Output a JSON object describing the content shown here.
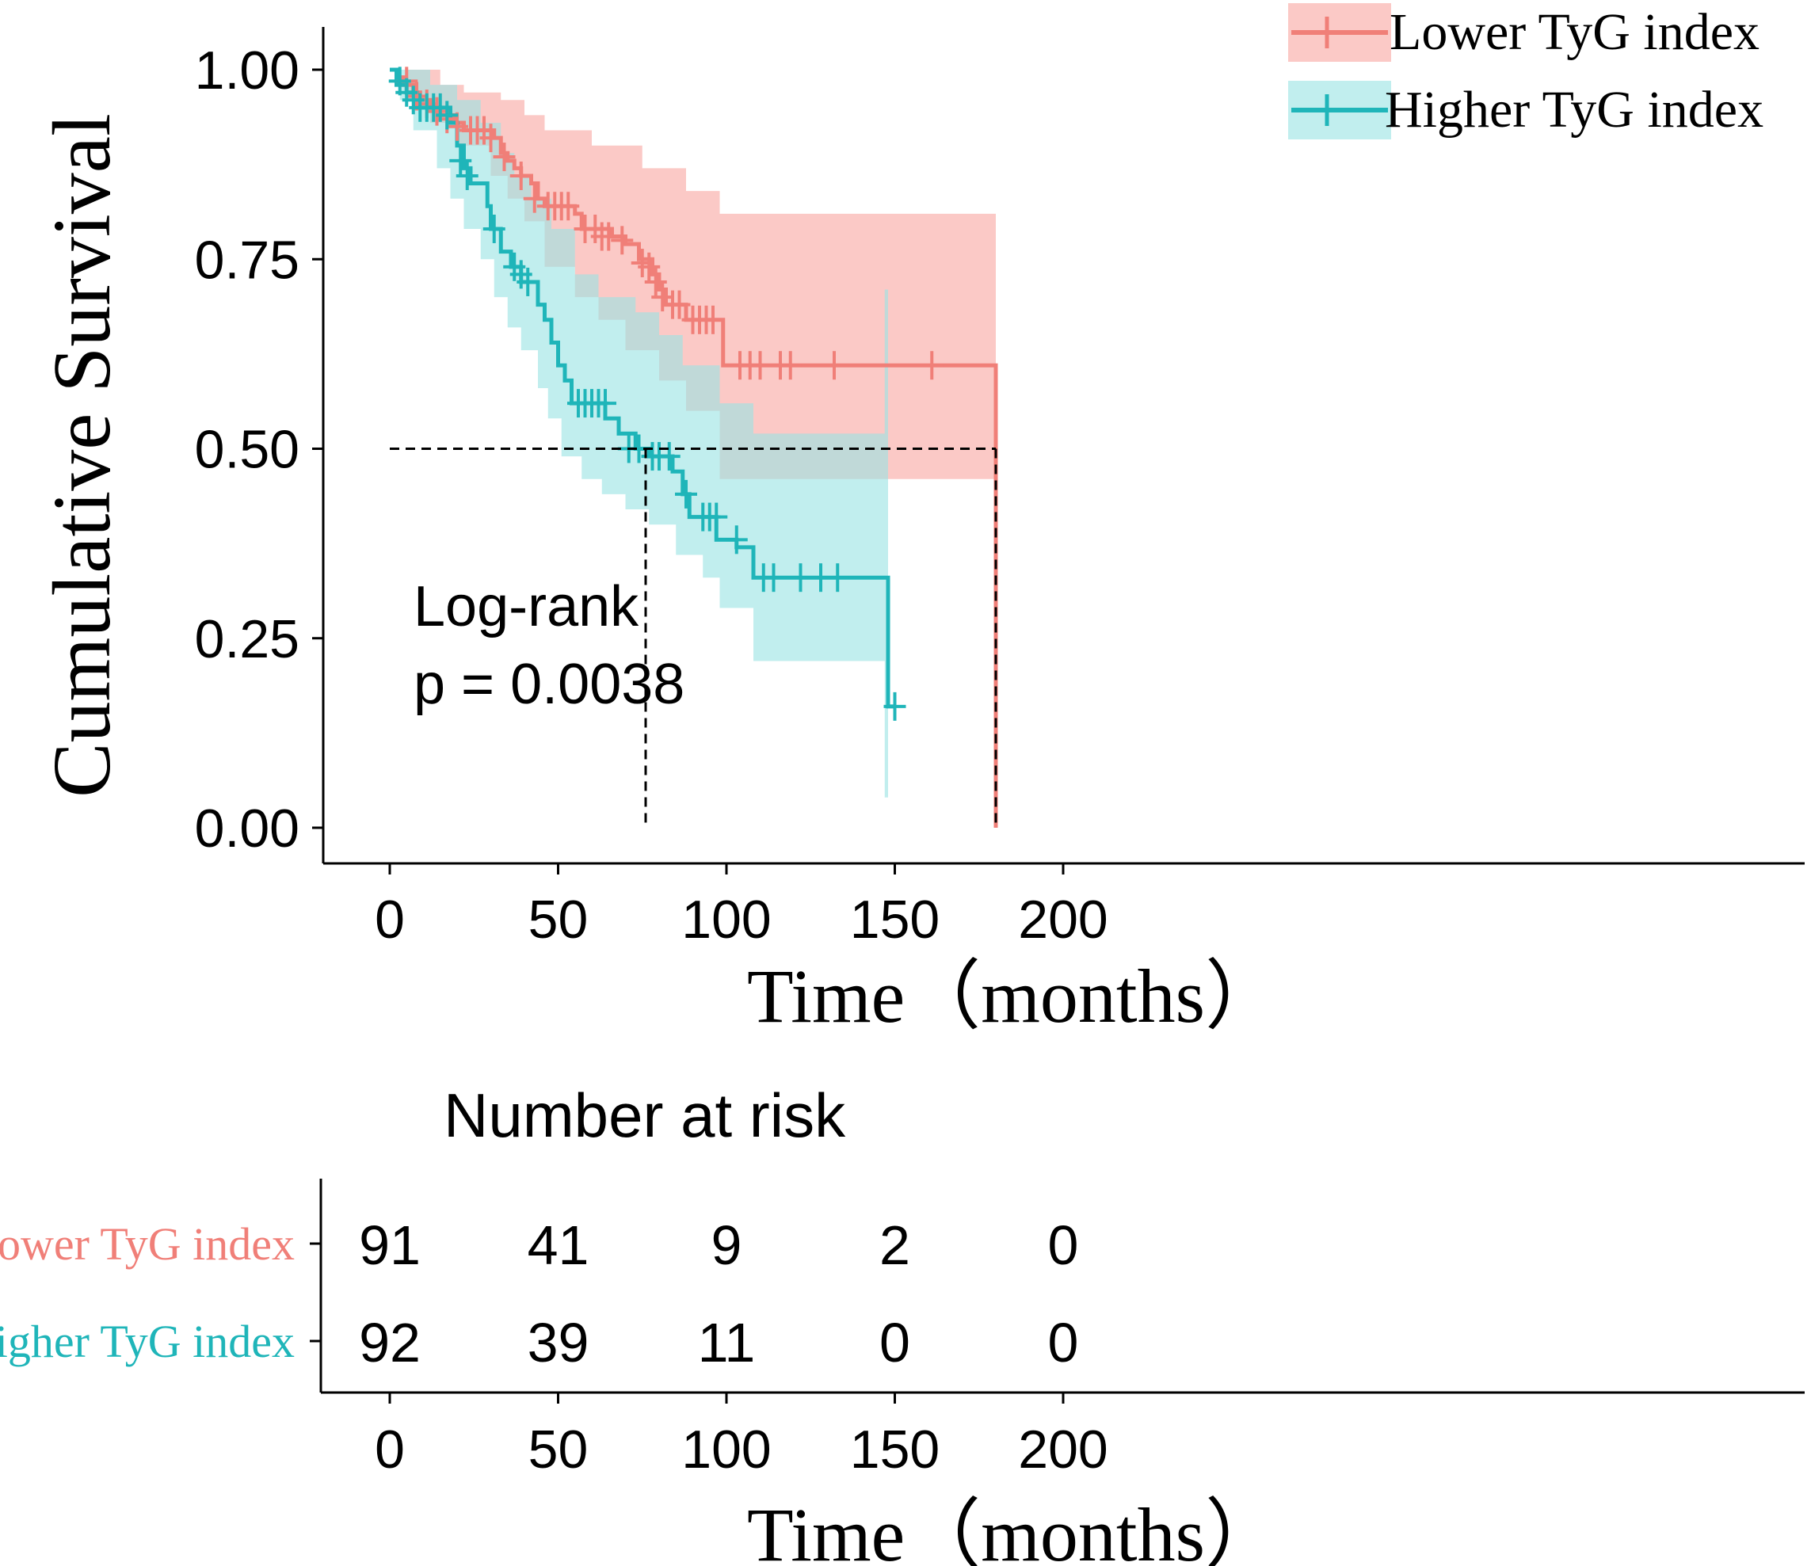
{
  "chart_data": {
    "type": "line",
    "subtype": "kaplan-meier",
    "ylabel": "Cumulative Survival",
    "xlabel": "Time（months）",
    "xlim": [
      0,
      200
    ],
    "ylim": [
      0,
      1
    ],
    "x_ticks": [
      "0",
      "50",
      "100",
      "150",
      "200"
    ],
    "y_ticks": [
      "0.00",
      "0.25",
      "0.50",
      "0.75",
      "1.00"
    ],
    "x_tick_values": [
      0,
      50,
      100,
      150,
      200
    ],
    "y_tick_values": [
      0,
      0.25,
      0.5,
      0.75,
      1.0
    ],
    "annotation": {
      "line1": "Log-rank",
      "line2": "p = 0.0038"
    },
    "median_line_y": 0.5,
    "medians": [
      76,
      180
    ],
    "legend": {
      "position": "top-right"
    },
    "series": [
      {
        "name": "Lower TyG index",
        "color": "#F07F78",
        "band_color": "#F8A8A3",
        "steps": [
          [
            0,
            1.0
          ],
          [
            2,
            0.99
          ],
          [
            4,
            0.98
          ],
          [
            7,
            0.97
          ],
          [
            9,
            0.96
          ],
          [
            12,
            0.95
          ],
          [
            15,
            0.94
          ],
          [
            19,
            0.93
          ],
          [
            22,
            0.92
          ],
          [
            31,
            0.91
          ],
          [
            33,
            0.89
          ],
          [
            35,
            0.88
          ],
          [
            37,
            0.87
          ],
          [
            39,
            0.86
          ],
          [
            42,
            0.85
          ],
          [
            44,
            0.83
          ],
          [
            46,
            0.82
          ],
          [
            55,
            0.81
          ],
          [
            57,
            0.79
          ],
          [
            66,
            0.78
          ],
          [
            70,
            0.77
          ],
          [
            74,
            0.75
          ],
          [
            78,
            0.73
          ],
          [
            80,
            0.71
          ],
          [
            82,
            0.69
          ],
          [
            88,
            0.67
          ],
          [
            99,
            0.61
          ],
          [
            180,
            0.61
          ],
          [
            180,
            0
          ]
        ],
        "upper": [
          [
            0,
            1.0
          ],
          [
            5,
            1.0
          ],
          [
            15,
            0.98
          ],
          [
            22,
            0.97
          ],
          [
            33,
            0.96
          ],
          [
            40,
            0.94
          ],
          [
            46,
            0.92
          ],
          [
            60,
            0.9
          ],
          [
            75,
            0.87
          ],
          [
            88,
            0.84
          ],
          [
            98,
            0.81
          ],
          [
            180,
            0.81
          ]
        ],
        "lower": [
          [
            0,
            1.0
          ],
          [
            5,
            0.96
          ],
          [
            12,
            0.93
          ],
          [
            20,
            0.9
          ],
          [
            30,
            0.86
          ],
          [
            35,
            0.83
          ],
          [
            40,
            0.8
          ],
          [
            46,
            0.74
          ],
          [
            55,
            0.7
          ],
          [
            62,
            0.67
          ],
          [
            70,
            0.63
          ],
          [
            80,
            0.59
          ],
          [
            88,
            0.55
          ],
          [
            98,
            0.46
          ],
          [
            180,
            0.46
          ]
        ],
        "censors": [
          [
            5,
            0.985
          ],
          [
            8,
            0.965
          ],
          [
            11,
            0.955
          ],
          [
            14,
            0.945
          ],
          [
            17,
            0.935
          ],
          [
            20,
            0.925
          ],
          [
            24,
            0.92
          ],
          [
            26,
            0.92
          ],
          [
            28,
            0.92
          ],
          [
            30,
            0.91
          ],
          [
            34,
            0.885
          ],
          [
            39,
            0.86
          ],
          [
            43,
            0.83
          ],
          [
            47,
            0.82
          ],
          [
            49,
            0.82
          ],
          [
            51,
            0.82
          ],
          [
            53,
            0.82
          ],
          [
            58,
            0.79
          ],
          [
            61,
            0.79
          ],
          [
            63,
            0.78
          ],
          [
            65,
            0.78
          ],
          [
            69,
            0.775
          ],
          [
            75,
            0.745
          ],
          [
            77,
            0.74
          ],
          [
            79,
            0.72
          ],
          [
            81,
            0.7
          ],
          [
            84,
            0.69
          ],
          [
            86,
            0.69
          ],
          [
            90,
            0.67
          ],
          [
            92,
            0.67
          ],
          [
            94,
            0.67
          ],
          [
            96,
            0.67
          ],
          [
            104,
            0.61
          ],
          [
            107,
            0.61
          ],
          [
            110,
            0.61
          ],
          [
            116,
            0.61
          ],
          [
            119,
            0.61
          ],
          [
            132,
            0.61
          ],
          [
            161,
            0.61
          ]
        ]
      },
      {
        "name": "Higher TyG index",
        "color": "#1FB5B9",
        "band_color": "#9BE3E3",
        "steps": [
          [
            0,
            1.0
          ],
          [
            2,
            0.98
          ],
          [
            5,
            0.97
          ],
          [
            8,
            0.95
          ],
          [
            18,
            0.93
          ],
          [
            20,
            0.9
          ],
          [
            22,
            0.87
          ],
          [
            24,
            0.85
          ],
          [
            29,
            0.82
          ],
          [
            30,
            0.79
          ],
          [
            33,
            0.76
          ],
          [
            36,
            0.74
          ],
          [
            39,
            0.72
          ],
          [
            44,
            0.69
          ],
          [
            46,
            0.67
          ],
          [
            48,
            0.64
          ],
          [
            50,
            0.61
          ],
          [
            52,
            0.59
          ],
          [
            54,
            0.56
          ],
          [
            64,
            0.54
          ],
          [
            68,
            0.52
          ],
          [
            73,
            0.5
          ],
          [
            77,
            0.49
          ],
          [
            84,
            0.47
          ],
          [
            87,
            0.44
          ],
          [
            89,
            0.41
          ],
          [
            97,
            0.38
          ],
          [
            103,
            0.37
          ],
          [
            108,
            0.33
          ],
          [
            147,
            0.33
          ],
          [
            148,
            0.16
          ],
          [
            150,
            0.16
          ]
        ],
        "upper": [
          [
            0,
            1.0
          ],
          [
            4,
            1.0
          ],
          [
            12,
            0.98
          ],
          [
            20,
            0.96
          ],
          [
            27,
            0.93
          ],
          [
            33,
            0.89
          ],
          [
            37,
            0.86
          ],
          [
            42,
            0.83
          ],
          [
            48,
            0.79
          ],
          [
            55,
            0.73
          ],
          [
            62,
            0.7
          ],
          [
            73,
            0.68
          ],
          [
            80,
            0.65
          ],
          [
            87,
            0.61
          ],
          [
            98,
            0.56
          ],
          [
            108,
            0.52
          ],
          [
            147,
            0.52
          ],
          [
            147,
            0.71
          ],
          [
            148,
            0.71
          ]
        ],
        "lower": [
          [
            0,
            1.0
          ],
          [
            3,
            0.96
          ],
          [
            7,
            0.92
          ],
          [
            14,
            0.87
          ],
          [
            18,
            0.83
          ],
          [
            22,
            0.79
          ],
          [
            27,
            0.75
          ],
          [
            31,
            0.7
          ],
          [
            35,
            0.66
          ],
          [
            39,
            0.63
          ],
          [
            44,
            0.58
          ],
          [
            47,
            0.54
          ],
          [
            51,
            0.49
          ],
          [
            57,
            0.46
          ],
          [
            63,
            0.44
          ],
          [
            70,
            0.42
          ],
          [
            77,
            0.4
          ],
          [
            85,
            0.36
          ],
          [
            93,
            0.33
          ],
          [
            98,
            0.29
          ],
          [
            108,
            0.22
          ],
          [
            147,
            0.22
          ],
          [
            147,
            0.04
          ],
          [
            148,
            0.04
          ]
        ],
        "censors": [
          [
            3,
            0.985
          ],
          [
            5,
            0.97
          ],
          [
            7,
            0.96
          ],
          [
            9,
            0.95
          ],
          [
            11,
            0.95
          ],
          [
            13,
            0.95
          ],
          [
            15,
            0.95
          ],
          [
            17,
            0.94
          ],
          [
            21,
            0.88
          ],
          [
            23,
            0.86
          ],
          [
            31,
            0.79
          ],
          [
            37,
            0.74
          ],
          [
            39,
            0.73
          ],
          [
            41,
            0.72
          ],
          [
            56,
            0.56
          ],
          [
            58,
            0.56
          ],
          [
            60,
            0.56
          ],
          [
            62,
            0.56
          ],
          [
            64,
            0.56
          ],
          [
            71,
            0.5
          ],
          [
            74,
            0.5
          ],
          [
            78,
            0.49
          ],
          [
            80,
            0.49
          ],
          [
            83,
            0.49
          ],
          [
            88,
            0.44
          ],
          [
            93,
            0.41
          ],
          [
            95,
            0.41
          ],
          [
            97,
            0.41
          ],
          [
            103,
            0.38
          ],
          [
            111,
            0.33
          ],
          [
            114,
            0.33
          ],
          [
            122,
            0.33
          ],
          [
            128,
            0.33
          ],
          [
            133,
            0.33
          ],
          [
            150,
            0.16
          ]
        ]
      }
    ],
    "risk_table": {
      "title": "Number at risk",
      "times": [
        0,
        50,
        100,
        150,
        200
      ],
      "rows": [
        {
          "label": "Lower TyG index",
          "values": [
            "91",
            "41",
            "9",
            "2",
            "0"
          ]
        },
        {
          "label": "Higher TyG index",
          "values": [
            "92",
            "39",
            "11",
            "0",
            "0"
          ]
        }
      ],
      "x_ticks": [
        "0",
        "50",
        "100",
        "150",
        "200"
      ],
      "xlabel": "Time（months）"
    }
  }
}
